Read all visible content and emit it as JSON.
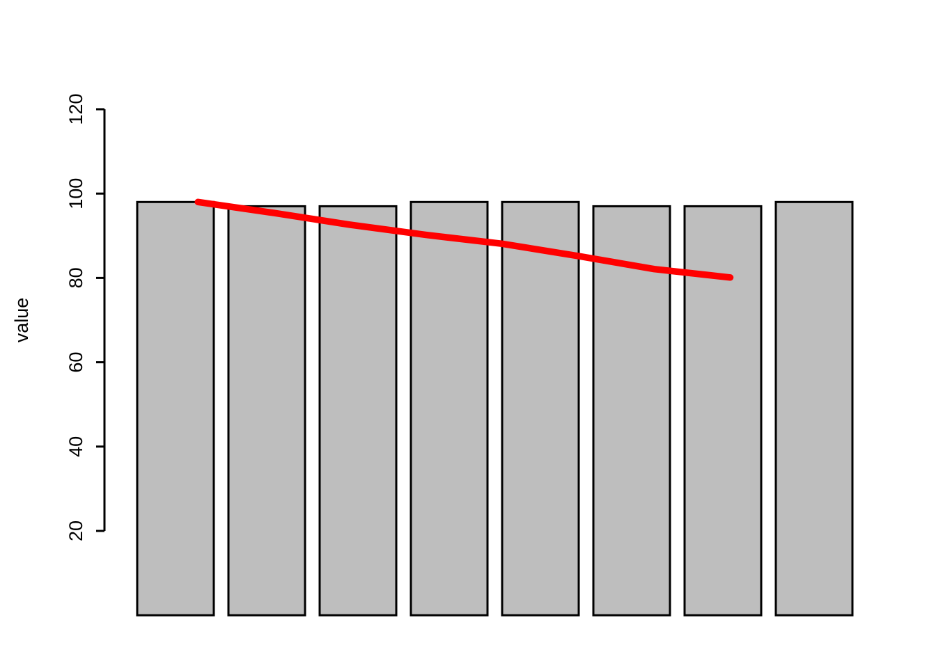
{
  "chart_data": {
    "type": "bar",
    "title": "",
    "xlabel": "",
    "ylabel": "value",
    "values": [
      98,
      97,
      97,
      98,
      98,
      97,
      97,
      98
    ],
    "bar_fill": "#BEBEBE",
    "bar_border": "#000000",
    "axis_color": "#000000",
    "ylim": [
      0,
      120
    ],
    "yticks": [
      20,
      40,
      60,
      80,
      100,
      120
    ],
    "grid": false,
    "legend": "none",
    "x_axis_tick_labels": "none",
    "overlay_line": {
      "name": "smooth-trend-line",
      "color": "#FF0000",
      "x": [
        1,
        2,
        3,
        4,
        5,
        6,
        7,
        8
      ],
      "y": [
        98.0,
        95.4,
        92.6,
        90.2,
        88.1,
        85.2,
        82.1,
        80.1
      ]
    }
  }
}
